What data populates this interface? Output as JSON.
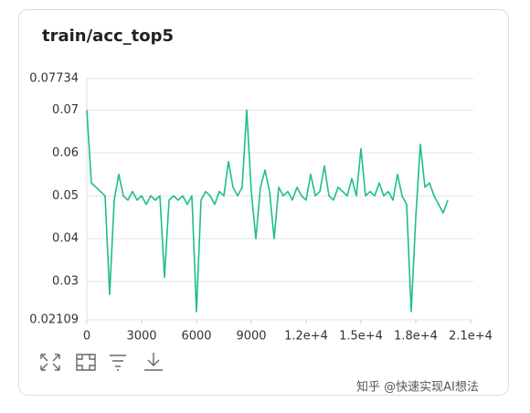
{
  "chart_data": {
    "type": "line",
    "title": "train/acc_top5",
    "x": [
      0,
      250,
      500,
      750,
      1000,
      1250,
      1500,
      1750,
      2000,
      2250,
      2500,
      2750,
      3000,
      3250,
      3500,
      3750,
      4000,
      4250,
      4500,
      4750,
      5000,
      5250,
      5500,
      5750,
      6000,
      6250,
      6500,
      6750,
      7000,
      7250,
      7500,
      7750,
      8000,
      8250,
      8500,
      8750,
      9000,
      9250,
      9500,
      9750,
      10000,
      10250,
      10500,
      10750,
      11000,
      11250,
      11500,
      11750,
      12000,
      12250,
      12500,
      12750,
      13000,
      13250,
      13500,
      13750,
      14000,
      14250,
      14500,
      14750,
      15000,
      15250,
      15500,
      15750,
      16000,
      16250,
      16500,
      16750,
      17000,
      17250,
      17500,
      17750,
      18000,
      18250,
      18500,
      18750,
      19000,
      19250,
      19500,
      19750
    ],
    "series": [
      {
        "name": "acc_top5",
        "color": "#1ec081",
        "values": [
          0.07,
          0.053,
          0.052,
          0.051,
          0.05,
          0.027,
          0.049,
          0.055,
          0.05,
          0.049,
          0.051,
          0.049,
          0.05,
          0.048,
          0.05,
          0.049,
          0.05,
          0.031,
          0.049,
          0.05,
          0.049,
          0.05,
          0.048,
          0.05,
          0.023,
          0.049,
          0.051,
          0.05,
          0.048,
          0.051,
          0.05,
          0.058,
          0.052,
          0.05,
          0.052,
          0.07,
          0.051,
          0.04,
          0.052,
          0.056,
          0.051,
          0.04,
          0.052,
          0.05,
          0.051,
          0.049,
          0.052,
          0.05,
          0.049,
          0.055,
          0.05,
          0.051,
          0.057,
          0.05,
          0.049,
          0.052,
          0.051,
          0.05,
          0.054,
          0.05,
          0.061,
          0.05,
          0.051,
          0.05,
          0.053,
          0.05,
          0.051,
          0.049,
          0.055,
          0.05,
          0.048,
          0.023,
          0.045,
          0.062,
          0.052,
          0.053,
          0.05,
          0.048,
          0.046,
          0.049
        ]
      }
    ],
    "xlim": [
      0,
      21000
    ],
    "xticks": [
      0,
      3000,
      6000,
      9000,
      {
        "value": 12000,
        "label": "1.2e+4"
      },
      {
        "value": 15000,
        "label": "1.5e+4"
      },
      {
        "value": 18000,
        "label": "1.8e+4"
      },
      {
        "value": 21000,
        "label": "2.1e+4"
      }
    ],
    "ylim": [
      0.02109,
      0.07734
    ],
    "yticks": [
      0.02109,
      0.03,
      0.04,
      0.05,
      0.06,
      0.07,
      0.07734
    ],
    "grid": true
  },
  "watermark": "知乎 @快速实现AI想法"
}
